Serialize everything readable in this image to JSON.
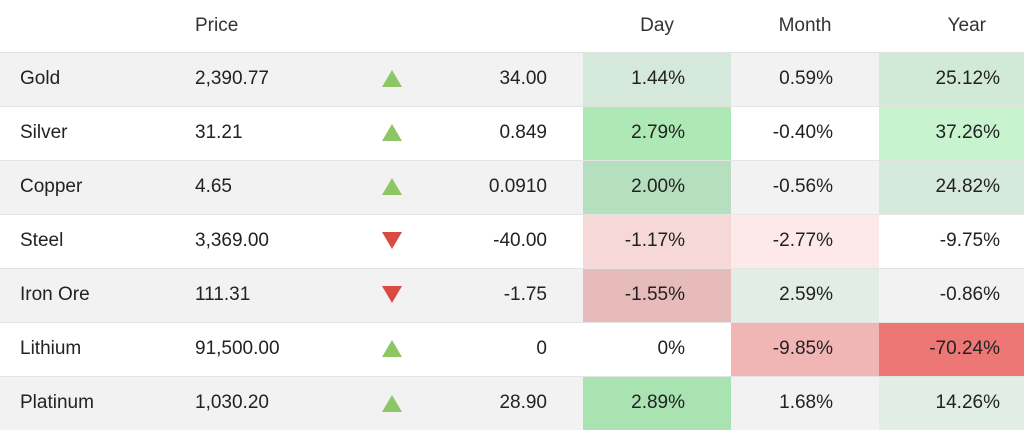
{
  "header": {
    "name": "",
    "price": "Price",
    "arrow": "",
    "change": "",
    "day": "Day",
    "month": "Month",
    "year": "Year"
  },
  "rows": [
    {
      "name": "Gold",
      "price": "2,390.77",
      "direction": "up",
      "change": "34.00",
      "day": "1.44%",
      "month": "0.59%",
      "year": "25.12%",
      "colors": {
        "day": "#d5e8dc",
        "month": "",
        "year": "#d1ead7"
      }
    },
    {
      "name": "Silver",
      "price": "31.21",
      "direction": "up",
      "change": "0.849",
      "day": "2.79%",
      "month": "-0.40%",
      "year": "37.26%",
      "colors": {
        "day": "#ade8b5",
        "month": "",
        "year": "#c8f3cf"
      }
    },
    {
      "name": "Copper",
      "price": "4.65",
      "direction": "up",
      "change": "0.0910",
      "day": "2.00%",
      "month": "-0.56%",
      "year": "24.82%",
      "colors": {
        "day": "#b5dfbe",
        "month": "",
        "year": "#d5e9dc"
      }
    },
    {
      "name": "Steel",
      "price": "3,369.00",
      "direction": "down",
      "change": "-40.00",
      "day": "-1.17%",
      "month": "-2.77%",
      "year": "-9.75%",
      "colors": {
        "day": "#f6d8d9",
        "month": "#fde9ea",
        "year": ""
      }
    },
    {
      "name": "Iron Ore",
      "price": "111.31",
      "direction": "down",
      "change": "-1.75",
      "day": "-1.55%",
      "month": "2.59%",
      "year": "-0.86%",
      "colors": {
        "day": "#e8bbbb",
        "month": "#e2eee5",
        "year": ""
      }
    },
    {
      "name": "Lithium",
      "price": "91,500.00",
      "direction": "up",
      "change": "0",
      "day": "0%",
      "month": "-9.85%",
      "year": "-70.24%",
      "colors": {
        "day": "",
        "month": "#f2b5b6",
        "year": "#ec7775"
      }
    },
    {
      "name": "Platinum",
      "price": "1,030.20",
      "direction": "up",
      "change": "28.90",
      "day": "2.89%",
      "month": "1.68%",
      "year": "14.26%",
      "colors": {
        "day": "#a8e3b1",
        "month": "",
        "year": "#e2eee5"
      }
    }
  ],
  "arrow_colors": {
    "up": "#8cc665",
    "down": "#d94a42"
  }
}
